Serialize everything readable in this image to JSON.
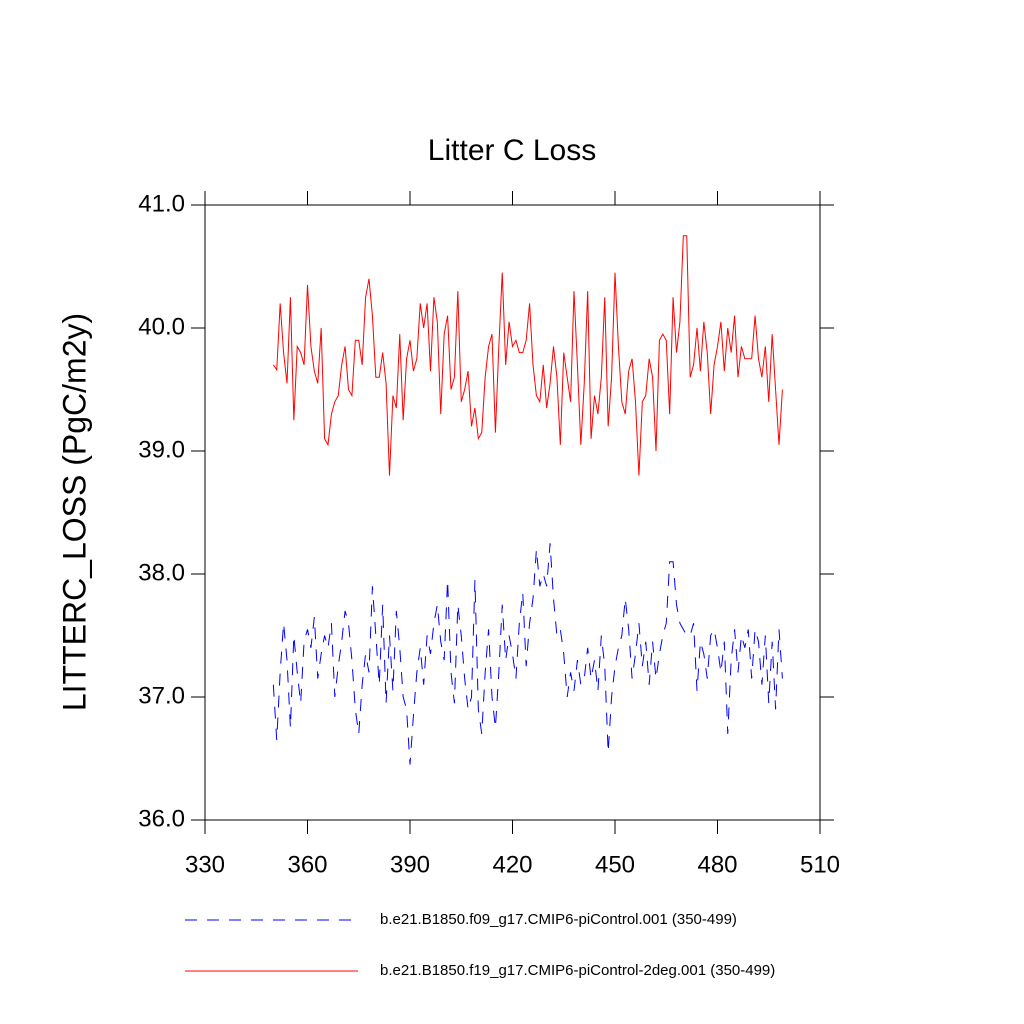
{
  "chart_data": {
    "type": "line",
    "title": "Litter C Loss",
    "ylabel": "LITTERC_LOSS  (PgC/m2y)",
    "x": [
      350,
      351,
      352,
      353,
      354,
      355,
      356,
      357,
      358,
      359,
      360,
      361,
      362,
      363,
      364,
      365,
      366,
      367,
      368,
      369,
      370,
      371,
      372,
      373,
      374,
      375,
      376,
      377,
      378,
      379,
      380,
      381,
      382,
      383,
      384,
      385,
      386,
      387,
      388,
      389,
      390,
      391,
      392,
      393,
      394,
      395,
      396,
      397,
      398,
      399,
      400,
      401,
      402,
      403,
      404,
      405,
      406,
      407,
      408,
      409,
      410,
      411,
      412,
      413,
      414,
      415,
      416,
      417,
      418,
      419,
      420,
      421,
      422,
      423,
      424,
      425,
      426,
      427,
      428,
      429,
      430,
      431,
      432,
      433,
      434,
      435,
      436,
      437,
      438,
      439,
      440,
      441,
      442,
      443,
      444,
      445,
      446,
      447,
      448,
      449,
      450,
      451,
      452,
      453,
      454,
      455,
      456,
      457,
      458,
      459,
      460,
      461,
      462,
      463,
      464,
      465,
      466,
      467,
      468,
      469,
      470,
      471,
      472,
      473,
      474,
      475,
      476,
      477,
      478,
      479,
      480,
      481,
      482,
      483,
      484,
      485,
      486,
      487,
      488,
      489,
      490,
      491,
      492,
      493,
      494,
      495,
      496,
      497,
      498,
      499
    ],
    "series": [
      {
        "name": "b.e21.B1850.f09_g17.CMIP6-piControl.001 (350-499)",
        "color": "#0000ff",
        "dash": true,
        "values": [
          37.1,
          36.65,
          37.2,
          37.6,
          37.3,
          36.75,
          37.5,
          37.2,
          36.95,
          37.45,
          37.55,
          37.4,
          37.65,
          37.15,
          37.35,
          37.5,
          37.4,
          37.6,
          37.0,
          37.25,
          37.45,
          37.7,
          37.6,
          37.3,
          36.9,
          36.7,
          37.1,
          37.35,
          37.2,
          37.9,
          37.5,
          37.1,
          37.75,
          36.95,
          37.5,
          37.05,
          37.7,
          37.4,
          37.0,
          36.9,
          36.45,
          36.85,
          37.2,
          37.4,
          37.1,
          37.5,
          37.35,
          37.6,
          37.75,
          37.45,
          37.3,
          37.95,
          37.2,
          36.95,
          37.75,
          37.5,
          37.15,
          36.9,
          37.0,
          37.95,
          36.9,
          36.7,
          37.2,
          37.55,
          37.0,
          36.75,
          37.2,
          37.75,
          37.3,
          37.5,
          37.35,
          37.15,
          37.6,
          37.85,
          37.25,
          37.6,
          37.8,
          38.2,
          37.9,
          38.0,
          37.9,
          38.25,
          37.8,
          37.5,
          37.55,
          37.35,
          37.0,
          37.2,
          37.05,
          37.3,
          37.1,
          37.15,
          37.4,
          37.15,
          37.3,
          37.05,
          37.5,
          37.25,
          36.55,
          37.0,
          37.25,
          37.4,
          37.5,
          37.8,
          37.55,
          37.15,
          37.35,
          37.6,
          37.25,
          37.45,
          37.1,
          37.45,
          37.15,
          37.35,
          37.5,
          37.6,
          38.1,
          38.1,
          37.75,
          37.6,
          37.55,
          37.5,
          37.5,
          37.6,
          37.05,
          37.45,
          37.35,
          37.15,
          37.5,
          37.55,
          37.4,
          37.2,
          37.45,
          36.7,
          37.3,
          37.55,
          37.2,
          37.5,
          37.4,
          37.55,
          37.15,
          37.55,
          37.45,
          37.1,
          37.5,
          36.95,
          37.45,
          36.9,
          37.55,
          37.15
        ]
      },
      {
        "name": "b.e21.B1850.f19_g17.CMIP6-piControl-2deg.001 (350-499)",
        "color": "#ff0000",
        "dash": false,
        "values": [
          39.7,
          39.66,
          40.2,
          39.8,
          39.55,
          40.25,
          39.25,
          39.85,
          39.8,
          39.7,
          40.35,
          39.85,
          39.65,
          39.55,
          40.0,
          39.1,
          39.05,
          39.3,
          39.4,
          39.45,
          39.7,
          39.85,
          39.5,
          39.45,
          39.9,
          39.9,
          39.7,
          40.25,
          40.4,
          40.1,
          39.6,
          39.6,
          39.8,
          39.55,
          38.8,
          39.45,
          39.35,
          39.95,
          39.25,
          39.75,
          39.9,
          39.65,
          39.75,
          40.2,
          40.0,
          40.2,
          39.65,
          40.25,
          40.05,
          39.3,
          39.95,
          40.1,
          39.5,
          39.6,
          40.3,
          39.4,
          39.5,
          39.65,
          39.2,
          39.35,
          39.1,
          39.15,
          39.6,
          39.85,
          39.95,
          39.15,
          39.85,
          40.45,
          39.7,
          40.05,
          39.85,
          39.9,
          39.8,
          39.8,
          39.9,
          40.2,
          39.7,
          39.45,
          39.4,
          39.7,
          39.35,
          39.55,
          39.85,
          39.6,
          39.05,
          39.8,
          39.6,
          39.4,
          40.3,
          39.7,
          39.05,
          39.55,
          40.3,
          39.1,
          39.45,
          39.3,
          39.6,
          40.25,
          39.2,
          39.6,
          40.45,
          39.85,
          39.4,
          39.3,
          39.65,
          39.75,
          39.4,
          38.8,
          39.4,
          39.45,
          39.75,
          39.6,
          39.0,
          39.9,
          39.95,
          39.9,
          39.3,
          40.25,
          39.8,
          40.05,
          40.75,
          40.75,
          39.6,
          39.7,
          40.0,
          39.65,
          40.05,
          39.8,
          39.3,
          39.7,
          39.85,
          40.05,
          39.65,
          40.0,
          39.8,
          40.1,
          39.6,
          39.85,
          39.75,
          39.75,
          39.75,
          40.1,
          39.75,
          39.6,
          39.85,
          39.4,
          39.95,
          39.5,
          39.05,
          39.5
        ]
      }
    ],
    "xlim": [
      330,
      510
    ],
    "xticks": [
      330,
      360,
      390,
      420,
      450,
      480,
      510
    ],
    "ylim": [
      36,
      41
    ],
    "yticks": [
      {
        "value": 36,
        "label": "36.0"
      },
      {
        "value": 37,
        "label": "37.0"
      },
      {
        "value": 38,
        "label": "38.0"
      },
      {
        "value": 39,
        "label": "39.0"
      },
      {
        "value": 40,
        "label": "40.0"
      },
      {
        "value": 41,
        "label": "41.0"
      }
    ]
  }
}
